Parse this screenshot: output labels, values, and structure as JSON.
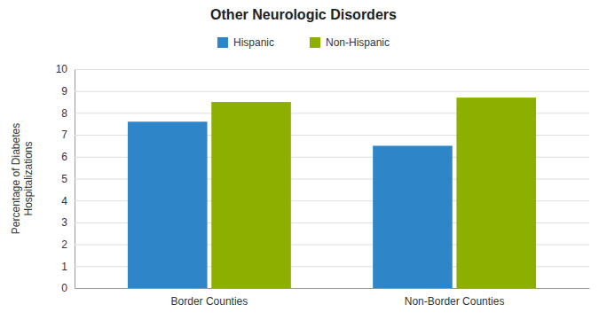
{
  "chart_data": {
    "type": "bar",
    "title": "Other Neurologic Disorders",
    "categories": [
      "Border Counties",
      "Non-Border Counties"
    ],
    "series": [
      {
        "name": "Hispanic",
        "color": "#2E86C8",
        "values": [
          7.6,
          6.5
        ]
      },
      {
        "name": "Non-Hispanic",
        "color": "#8DB000",
        "values": [
          8.5,
          8.7
        ]
      }
    ],
    "ylabel": [
      "Percentage of Diabetes",
      "Hospitalizations"
    ],
    "ylim": [
      0,
      10
    ],
    "yticks": [
      0,
      1,
      2,
      3,
      4,
      5,
      6,
      7,
      8,
      9,
      10
    ],
    "grid": true,
    "legend": "top"
  }
}
